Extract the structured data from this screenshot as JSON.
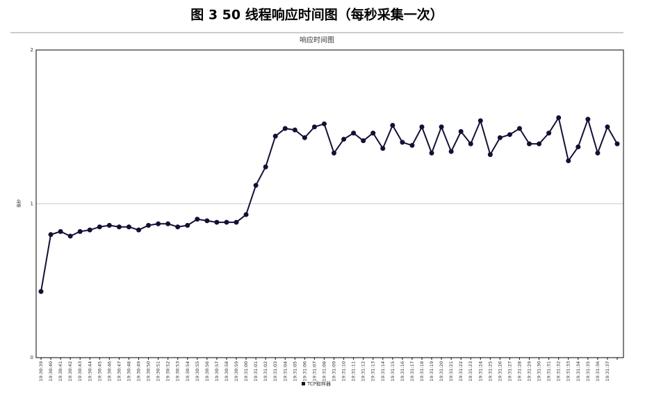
{
  "caption": "图 3 50 线程响应时间图（每秒采集一次）",
  "chart_data": {
    "type": "line",
    "title": "响应时间图",
    "y_label": "毫秒",
    "categories": [
      "19:30:39",
      "19:30:40",
      "19:30:41",
      "19:30:42",
      "19:30:43",
      "19:30:44",
      "19:30:45",
      "19:30:46",
      "19:30:47",
      "19:30:48",
      "19:30:49",
      "19:30:50",
      "19:30:51",
      "19:30:52",
      "19:30:53",
      "19:30:54",
      "19:30:55",
      "19:30:56",
      "19:30:57",
      "19:30:58",
      "19:30:59",
      "19:31:00",
      "19:31:01",
      "19:31:02",
      "19:31:03",
      "19:31:04",
      "19:31:05",
      "19:31:06",
      "19:31:07",
      "19:31:08",
      "19:31:09",
      "19:31:10",
      "19:31:11",
      "19:31:12",
      "19:31:13",
      "19:31:14",
      "19:31:15",
      "19:31:16",
      "19:31:17",
      "19:31:18",
      "19:31:19",
      "19:31:20",
      "19:31:21",
      "19:31:22",
      "19:31:23",
      "19:31:24",
      "19:31:25",
      "19:31:26",
      "19:31:27",
      "19:31:28",
      "19:31:29",
      "19:31:30",
      "19:31:31",
      "19:31:32",
      "19:31:33",
      "19:31:34",
      "19:31:35",
      "19:31:36",
      "19:31:37",
      null
    ],
    "series": [
      {
        "name": "TCP取样器",
        "color": "#140f35",
        "values": [
          0.43,
          0.8,
          0.82,
          0.79,
          0.82,
          0.83,
          0.85,
          0.86,
          0.85,
          0.85,
          0.83,
          0.86,
          0.87,
          0.87,
          0.85,
          0.86,
          0.9,
          0.89,
          0.88,
          0.88,
          0.88,
          0.93,
          1.12,
          1.24,
          1.44,
          1.49,
          1.48,
          1.43,
          1.5,
          1.52,
          1.33,
          1.42,
          1.46,
          1.41,
          1.46,
          1.36,
          1.51,
          1.4,
          1.38,
          1.5,
          1.33,
          1.5,
          1.34,
          1.47,
          1.39,
          1.54,
          1.32,
          1.43,
          1.45,
          1.49,
          1.39,
          1.39,
          1.46,
          1.56,
          1.28,
          1.37,
          1.55,
          1.33,
          1.5,
          1.39
        ]
      }
    ],
    "ylim": [
      0,
      2
    ],
    "yticks": [
      0,
      1,
      2
    ],
    "grid": true,
    "legend": "bottom"
  }
}
